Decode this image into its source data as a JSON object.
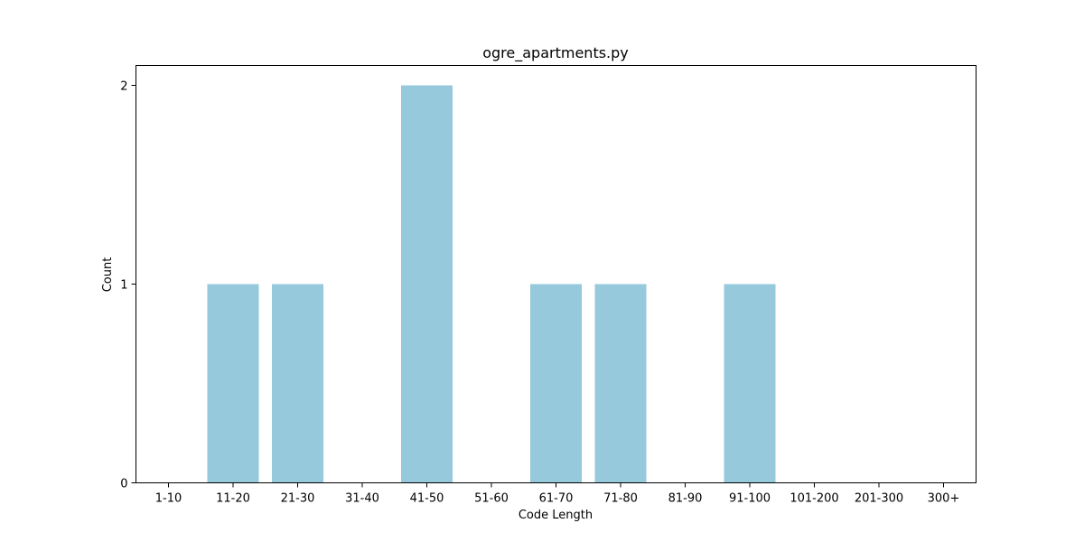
{
  "chart_data": {
    "type": "bar",
    "title": "ogre_apartments.py",
    "xlabel": "Code Length",
    "ylabel": "Count",
    "categories": [
      "1-10",
      "11-20",
      "21-30",
      "31-40",
      "41-50",
      "51-60",
      "61-70",
      "71-80",
      "81-90",
      "91-100",
      "101-200",
      "201-300",
      "300+"
    ],
    "values": [
      0,
      1,
      1,
      0,
      2,
      0,
      1,
      1,
      0,
      1,
      0,
      0,
      0
    ],
    "yticks": [
      0,
      1,
      2
    ],
    "ylim": [
      0,
      2.1
    ],
    "bar_color": "#96c9dc",
    "grid": false,
    "legend": "none"
  }
}
